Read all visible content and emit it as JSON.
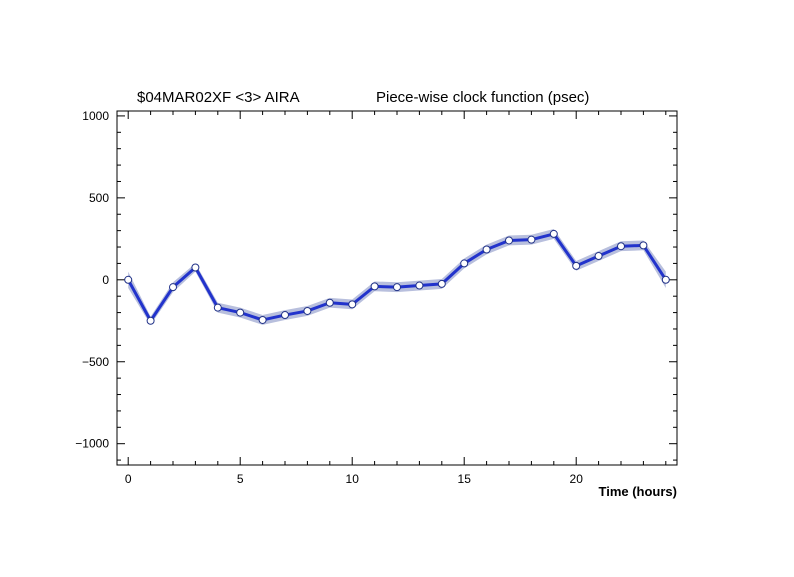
{
  "chart_data": {
    "type": "line",
    "title_left": "$04MAR02XF <3> AIRA",
    "title_right": "Piece-wise clock function (psec)",
    "xlabel": "Time (hours)",
    "ylabel": "",
    "xlim": [
      -0.5,
      24.5
    ],
    "ylim": [
      -1130,
      1030
    ],
    "x_ticks": [
      0,
      5,
      10,
      15,
      20
    ],
    "y_ticks": [
      1000,
      500,
      0,
      -500,
      -1000
    ],
    "grid": false,
    "series": [
      {
        "x": [
          0,
          1,
          2,
          3,
          4,
          5,
          6,
          7,
          8,
          9,
          10,
          11,
          12,
          13,
          14,
          15,
          16,
          17,
          18,
          19,
          20,
          21,
          22,
          23,
          24
        ],
        "values": [
          0,
          -250,
          -45,
          75,
          -170,
          -200,
          -245,
          -215,
          -190,
          -140,
          -150,
          -40,
          -45,
          -35,
          -25,
          100,
          185,
          240,
          245,
          280,
          85,
          145,
          205,
          210,
          0
        ],
        "uncertainty": [
          50,
          25,
          30,
          25,
          30,
          30,
          30,
          30,
          30,
          30,
          30,
          30,
          30,
          30,
          30,
          30,
          30,
          30,
          30,
          30,
          30,
          30,
          30,
          30,
          50
        ]
      }
    ],
    "colors": {
      "line": "#2233cc",
      "band": "#b8bfdd",
      "marker_fill": "#ffffff",
      "marker_edge": "#223388"
    }
  }
}
